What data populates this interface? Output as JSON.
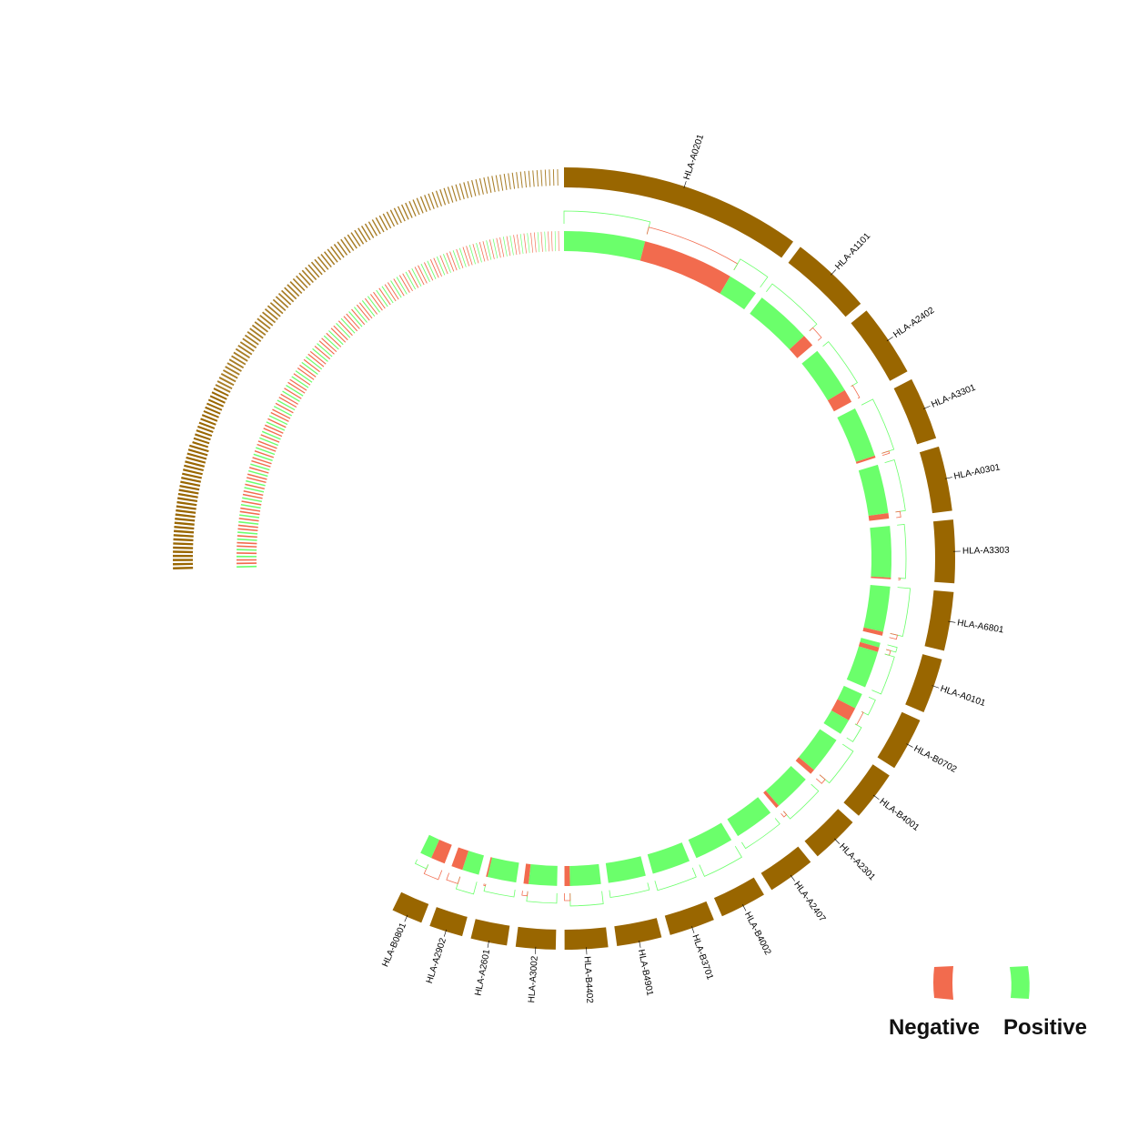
{
  "chart_data": {
    "type": "circos",
    "description_note": "",
    "labeled_alleles": [
      {
        "name": "HLA-A0201",
        "share": 28.0,
        "runs": [
          [
            "P",
            0.4
          ],
          [
            "N",
            0.45
          ],
          [
            "P",
            0.15
          ]
        ]
      },
      {
        "name": "HLA-A1101",
        "share": 9.5,
        "runs": [
          [
            "P",
            0.82
          ],
          [
            "N",
            0.18
          ]
        ]
      },
      {
        "name": "HLA-A2402",
        "share": 8.4,
        "runs": [
          [
            "P",
            0.78
          ],
          [
            "N",
            0.22
          ]
        ]
      },
      {
        "name": "HLA-A3301",
        "share": 7.3,
        "runs": [
          [
            "P",
            0.96
          ],
          [
            "N",
            0.04
          ]
        ]
      },
      {
        "name": "HLA-A0301",
        "share": 7.5,
        "runs": [
          [
            "P",
            0.9
          ],
          [
            "N",
            0.1
          ]
        ]
      },
      {
        "name": "HLA-A3303",
        "share": 7.3,
        "runs": [
          [
            "P",
            0.97
          ],
          [
            "N",
            0.03
          ]
        ]
      },
      {
        "name": "HLA-A6801",
        "share": 6.8,
        "runs": [
          [
            "P",
            0.92
          ],
          [
            "N",
            0.08
          ]
        ]
      },
      {
        "name": "HLA-A0101",
        "share": 6.4,
        "runs": [
          [
            "P",
            0.1
          ],
          [
            "N",
            0.1
          ],
          [
            "P",
            0.8
          ]
        ]
      },
      {
        "name": "HLA-B0702",
        "share": 6.2,
        "runs": [
          [
            "P",
            0.35
          ],
          [
            "N",
            0.3
          ],
          [
            "P",
            0.35
          ]
        ]
      },
      {
        "name": "HLA-B4001",
        "share": 5.8,
        "runs": [
          [
            "P",
            0.88
          ],
          [
            "N",
            0.12
          ]
        ]
      },
      {
        "name": "HLA-A2301",
        "share": 5.6,
        "runs": [
          [
            "P",
            0.92
          ],
          [
            "N",
            0.08
          ]
        ]
      },
      {
        "name": "HLA-A2407",
        "share": 5.5,
        "runs": [
          [
            "P",
            1.0
          ]
        ]
      },
      {
        "name": "HLA-B4002",
        "share": 5.4,
        "runs": [
          [
            "P",
            1.0
          ]
        ]
      },
      {
        "name": "HLA-B3701",
        "share": 5.3,
        "runs": [
          [
            "P",
            1.0
          ]
        ]
      },
      {
        "name": "HLA-B4901",
        "share": 5.2,
        "runs": [
          [
            "P",
            1.0
          ]
        ]
      },
      {
        "name": "HLA-B4402",
        "share": 5.0,
        "runs": [
          [
            "P",
            0.85
          ],
          [
            "N",
            0.15
          ]
        ]
      },
      {
        "name": "HLA-A3002",
        "share": 4.6,
        "runs": [
          [
            "P",
            0.85
          ],
          [
            "N",
            0.15
          ]
        ]
      },
      {
        "name": "HLA-A2601",
        "share": 4.2,
        "runs": [
          [
            "P",
            0.95
          ],
          [
            "N",
            0.05
          ]
        ]
      },
      {
        "name": "HLA-A2902",
        "share": 3.9,
        "runs": [
          [
            "P",
            0.6
          ],
          [
            "N",
            0.4
          ]
        ]
      },
      {
        "name": "HLA-B0801",
        "share": 3.6,
        "runs": [
          [
            "N",
            0.55
          ],
          [
            "P",
            0.45
          ]
        ]
      }
    ],
    "minor_alleles_count": 150,
    "legend": [
      {
        "label": "Negative",
        "color": "#f26b4e"
      },
      {
        "label": "Positive",
        "color": "#6bff6b"
      }
    ],
    "legend_placement": "bottom-right"
  },
  "colors": {
    "allele_band": "#996600",
    "negative": "#f26b4e",
    "positive": "#6bff6b"
  }
}
